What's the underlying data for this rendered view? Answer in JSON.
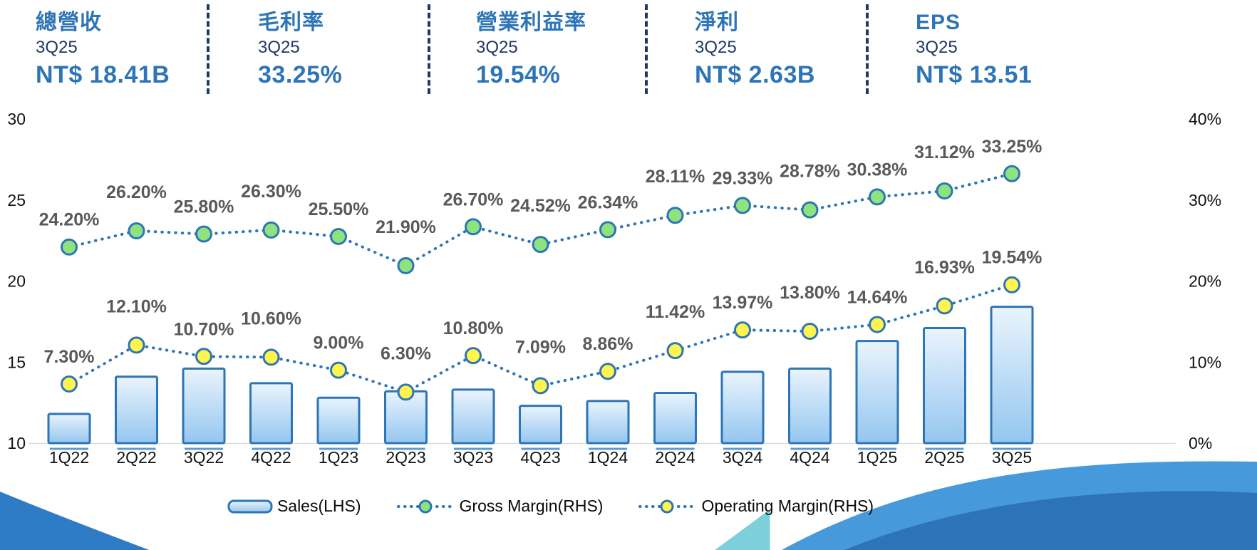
{
  "kpis": [
    {
      "title": "總營收",
      "period": "3Q25",
      "value": "NT$ 18.41B"
    },
    {
      "title": "毛利率",
      "period": "3Q25",
      "value": "33.25%"
    },
    {
      "title": "營業利益率",
      "period": "3Q25",
      "value": "19.54%"
    },
    {
      "title": "淨利",
      "period": "3Q25",
      "value": "NT$ 2.63B"
    },
    {
      "title": "EPS",
      "period": "3Q25",
      "value": "NT$ 13.51"
    }
  ],
  "chart_data": {
    "type": "bar",
    "subtype": "combo-bar-and-dotted-lines",
    "categories": [
      "1Q22",
      "2Q22",
      "3Q22",
      "4Q22",
      "1Q23",
      "2Q23",
      "3Q23",
      "4Q23",
      "1Q24",
      "2Q24",
      "3Q24",
      "4Q24",
      "1Q25",
      "2Q25",
      "3Q25"
    ],
    "series": [
      {
        "name": "Sales(LHS)",
        "type": "bar",
        "axis": "left",
        "values": [
          11.8,
          14.1,
          14.6,
          13.7,
          12.8,
          13.2,
          13.3,
          12.3,
          12.6,
          13.1,
          14.4,
          14.6,
          16.3,
          17.1,
          18.41
        ]
      },
      {
        "name": "Gross Margin(RHS)",
        "type": "line",
        "axis": "right",
        "values": [
          24.2,
          26.2,
          25.8,
          26.3,
          25.5,
          21.9,
          26.7,
          24.52,
          26.34,
          28.11,
          29.33,
          28.78,
          30.38,
          31.12,
          33.25
        ]
      },
      {
        "name": "Operating Margin(RHS)",
        "type": "line",
        "axis": "right",
        "values": [
          7.3,
          12.1,
          10.7,
          10.6,
          9.0,
          6.3,
          10.8,
          7.09,
          8.86,
          11.42,
          13.97,
          13.8,
          14.64,
          16.93,
          19.54
        ]
      }
    ],
    "left_axis": {
      "range": [
        10,
        30
      ],
      "ticks": [
        30,
        25,
        20,
        15,
        10
      ]
    },
    "right_axis": {
      "range": [
        0,
        40
      ],
      "ticks": [
        "40%",
        "30%",
        "20%",
        "10%",
        "0%"
      ],
      "tick_values": [
        40,
        30,
        20,
        10,
        0
      ]
    },
    "legend": [
      {
        "label": "Sales(LHS)"
      },
      {
        "label": "Gross Margin(RHS)"
      },
      {
        "label": "Operating Margin(RHS)"
      }
    ],
    "legend_position": "bottom",
    "grid": "off",
    "data_label_suffix": "%"
  },
  "colors": {
    "accent_blue": "#2E75B6",
    "navy": "#1F3864",
    "label_gray": "#595959",
    "marker_green": "#8FE37F",
    "marker_yellow": "#FFF44F",
    "bar_fill_top": "#EAF4FD",
    "bar_fill_bottom": "#94C6EF",
    "bar_reflection": "#5B9BD5",
    "axis_line": "#DCDCDC"
  }
}
